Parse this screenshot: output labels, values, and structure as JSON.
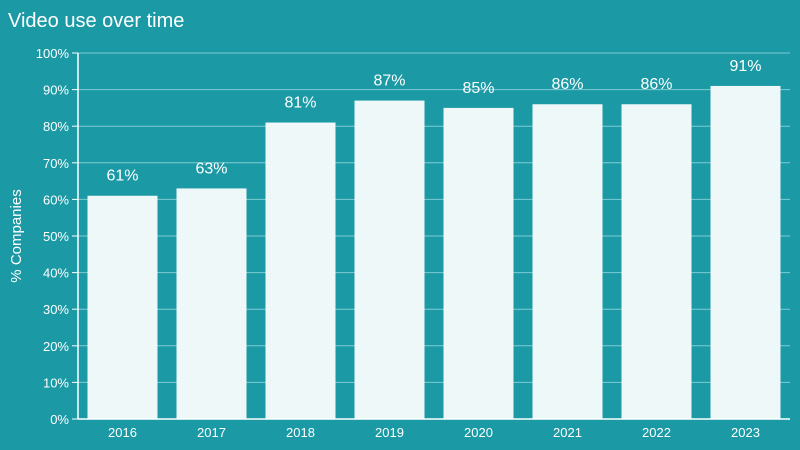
{
  "chart_data": {
    "type": "bar",
    "title": "Video use over time",
    "xlabel": "",
    "ylabel": "% Companies",
    "categories": [
      "2016",
      "2017",
      "2018",
      "2019",
      "2020",
      "2021",
      "2022",
      "2023"
    ],
    "values": [
      61,
      63,
      81,
      87,
      85,
      86,
      86,
      91
    ],
    "data_labels": [
      "61%",
      "63%",
      "81%",
      "87%",
      "85%",
      "86%",
      "86%",
      "91%"
    ],
    "ylim": [
      0,
      100
    ],
    "yticks": [
      "0%",
      "10%",
      "20%",
      "30%",
      "40%",
      "50%",
      "60%",
      "70%",
      "80%",
      "90%",
      "100%"
    ],
    "grid": true,
    "colors": {
      "background": "#1b9aa6",
      "bar": "#eef8f9",
      "grid": "#7fcad1",
      "text": "#ffffff"
    }
  }
}
